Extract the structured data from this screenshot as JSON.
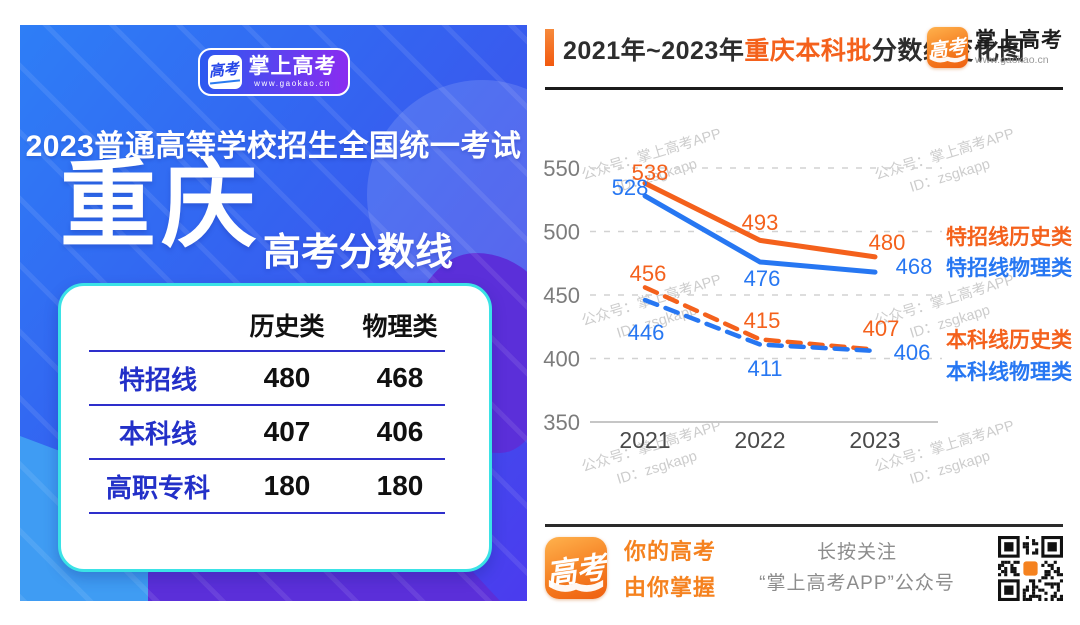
{
  "left_panel": {
    "logo": {
      "badge_text": "高考",
      "name": "掌上高考",
      "url": "www.gaokao.cn"
    },
    "exam_title": "2023普通高等学校招生全国统一考试",
    "province": "重庆",
    "subtitle": "高考分数线",
    "table": {
      "headers": [
        "历史类",
        "物理类"
      ],
      "rows": [
        {
          "label": "特招线",
          "values": [
            "480",
            "468"
          ]
        },
        {
          "label": "本科线",
          "values": [
            "407",
            "406"
          ]
        },
        {
          "label": "高职专科",
          "values": [
            "180",
            "180"
          ]
        }
      ]
    }
  },
  "right_panel": {
    "header": {
      "title_prefix": "2021年~2023年",
      "title_highlight": "重庆本科批",
      "title_suffix": "分数线变化图"
    },
    "logo": {
      "badge_text": "高考",
      "name": "掌上高考",
      "url": "www.gaokao.cn"
    },
    "watermark": {
      "line1": "公众号：掌上高考APP",
      "line2": "ID：zsgkapp"
    },
    "footer": {
      "logo_badge": "高考",
      "slogan_line1": "你的高考",
      "slogan_line2": "由你掌握",
      "follow_line1": "长按关注",
      "follow_line2": "“掌上高考APP”公众号"
    }
  },
  "chart_data": {
    "type": "line",
    "title": "2021年~2023年重庆本科批分数线变化图",
    "x": [
      "2021",
      "2022",
      "2023"
    ],
    "series": [
      {
        "name": "特招线历史类",
        "values": [
          538,
          493,
          480
        ],
        "color": "#f4611c",
        "style": "solid"
      },
      {
        "name": "特招线物理类",
        "values": [
          528,
          476,
          468
        ],
        "color": "#2777f2",
        "style": "solid"
      },
      {
        "name": "本科线历史类",
        "values": [
          456,
          415,
          407
        ],
        "color": "#f4611c",
        "style": "dashed"
      },
      {
        "name": "本科线物理类",
        "values": [
          446,
          411,
          406
        ],
        "color": "#2777f2",
        "style": "dashed"
      }
    ],
    "ylim": [
      350,
      550
    ],
    "yticks": [
      550,
      500,
      450,
      400,
      350
    ],
    "grid": "horizontal dashed, solid baseline at 350",
    "legend_position": "right",
    "data_labels": true
  }
}
